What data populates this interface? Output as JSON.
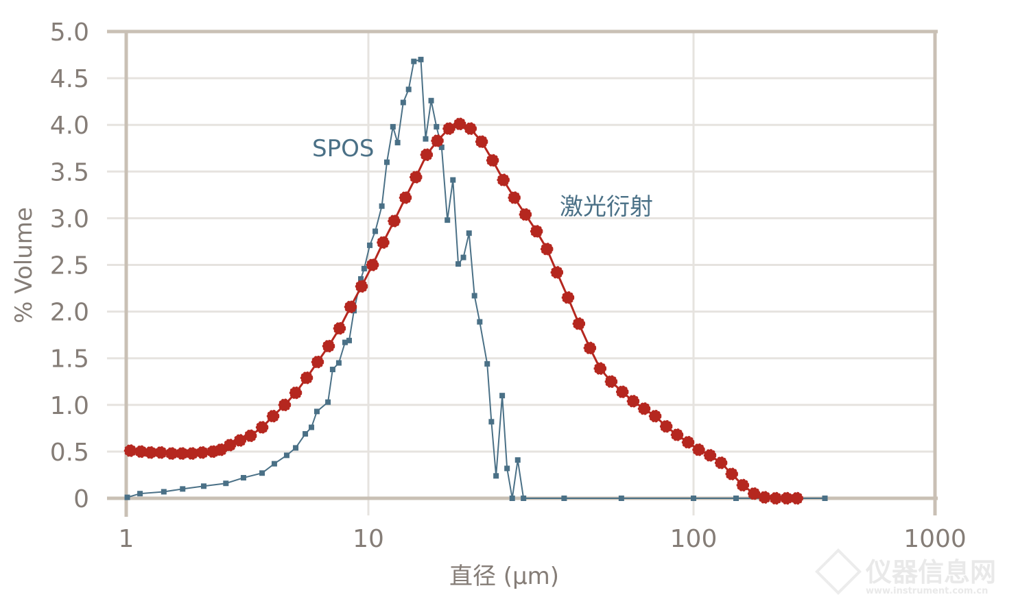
{
  "chart_data": {
    "type": "line",
    "title": "",
    "xlabel": "直径 (μm)",
    "ylabel": "% Volume",
    "xscale": "log",
    "xlim": [
      1,
      1000
    ],
    "ylim": [
      0,
      5.0
    ],
    "xticks": [
      "1",
      "10",
      "100",
      "1000"
    ],
    "xtick_values": [
      1,
      10,
      100,
      1000
    ],
    "yticks": [
      "0",
      "0.5",
      "1.0",
      "1.5",
      "2.0",
      "2.5",
      "3.0",
      "3.5",
      "4.0",
      "4.5",
      "5.0"
    ],
    "ytick_values": [
      0,
      0.5,
      1.0,
      1.5,
      2.0,
      2.5,
      3.0,
      3.5,
      4.0,
      4.5,
      5.0
    ],
    "grid": true,
    "legend": "inline labels",
    "series": [
      {
        "name": "SPOS",
        "color": "#4a7086",
        "marker": "square",
        "x": [
          1.01,
          1.14,
          1.43,
          1.71,
          2.09,
          2.58,
          3.05,
          3.64,
          4.09,
          4.6,
          5.01,
          5.49,
          5.82,
          6.13,
          6.81,
          7.12,
          7.55,
          8.01,
          8.33,
          8.72,
          9.31,
          9.61,
          10.1,
          10.5,
          11.0,
          11.4,
          11.9,
          12.3,
          12.8,
          13.3,
          13.8,
          14.5,
          15.0,
          15.6,
          16.2,
          16.8,
          17.5,
          18.2,
          18.9,
          19.6,
          20.4,
          21.2,
          22.0,
          23.2,
          23.9,
          24.7,
          25.8,
          26.7,
          27.7,
          28.8,
          30.0,
          40,
          60,
          100,
          150,
          200,
          270,
          350
        ],
        "y": [
          0.01,
          0.05,
          0.07,
          0.1,
          0.13,
          0.16,
          0.22,
          0.27,
          0.37,
          0.46,
          0.54,
          0.69,
          0.76,
          0.93,
          1.03,
          1.38,
          1.45,
          1.67,
          1.69,
          2.01,
          2.35,
          2.46,
          2.71,
          2.86,
          3.13,
          3.6,
          3.98,
          3.81,
          4.24,
          4.38,
          4.68,
          4.7,
          3.85,
          4.26,
          3.98,
          3.76,
          2.98,
          3.41,
          2.51,
          2.58,
          2.84,
          2.17,
          1.89,
          1.44,
          0.82,
          0.24,
          1.1,
          0.32,
          0,
          0.41,
          0,
          0,
          0,
          0,
          0,
          0,
          0,
          0
        ]
      },
      {
        "name": "激光衍射",
        "color": "#b5271f",
        "marker": "circle",
        "x": [
          1.04,
          1.15,
          1.26,
          1.39,
          1.54,
          1.7,
          1.87,
          2.06,
          2.28,
          2.46,
          2.68,
          2.95,
          3.26,
          3.64,
          4.04,
          4.51,
          5.01,
          5.56,
          6.17,
          6.85,
          7.6,
          8.44,
          9.37,
          10.3,
          11.1,
          12.0,
          13.0,
          14.0,
          15.1,
          16.3,
          17.7,
          19.1,
          20.6,
          22.3,
          24.1,
          26.0,
          28.1,
          30.4,
          32.9,
          35.4,
          38.0,
          41.1,
          44.4,
          48.0,
          51.6,
          55.8,
          60.4,
          65.2,
          70.5,
          76.2,
          82.4,
          89.0,
          96.2,
          105,
          117,
          130,
          144,
          160,
          178,
          197,
          219,
          243,
          268
        ],
        "y": [
          0.51,
          0.5,
          0.49,
          0.49,
          0.48,
          0.48,
          0.48,
          0.49,
          0.5,
          0.52,
          0.57,
          0.62,
          0.67,
          0.76,
          0.88,
          1.0,
          1.13,
          1.29,
          1.46,
          1.63,
          1.82,
          2.05,
          2.27,
          2.5,
          2.74,
          2.97,
          3.22,
          3.44,
          3.68,
          3.83,
          3.96,
          4.01,
          3.96,
          3.82,
          3.62,
          3.41,
          3.22,
          3.04,
          2.86,
          2.67,
          2.42,
          2.15,
          1.87,
          1.61,
          1.39,
          1.25,
          1.14,
          1.04,
          0.96,
          0.88,
          0.77,
          0.68,
          0.6,
          0.52,
          0.46,
          0.38,
          0.26,
          0.14,
          0.05,
          0.01,
          0,
          0,
          0
        ]
      }
    ],
    "annotations": [
      "SPOS",
      "激光衍射"
    ]
  },
  "style": {
    "axis_color": "#c9c0b5",
    "grid_color": "#e6e3df",
    "text_color": "#857d77"
  },
  "watermark": {
    "text": "仪器信息网",
    "url_text": "www.instrument.com.cn"
  }
}
